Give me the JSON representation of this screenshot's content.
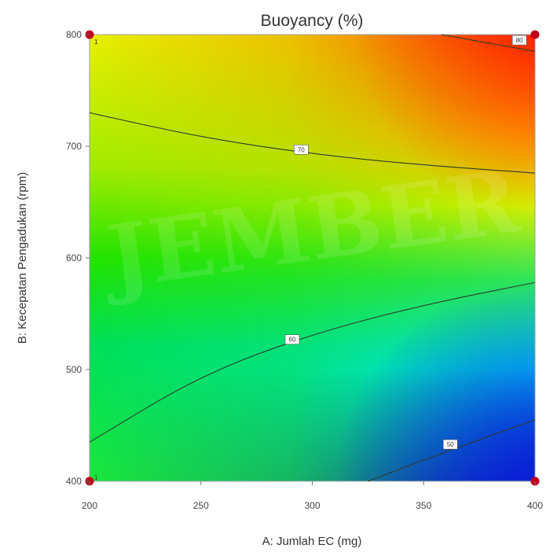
{
  "chart_data": {
    "type": "heatmap",
    "subtype": "contour",
    "title": "Buoyancy (%)",
    "xlabel": "A: Jumlah EC (mg)",
    "ylabel": "B: Kecepatan Pengadukan (rpm)",
    "xlim": [
      200,
      400
    ],
    "ylim": [
      400,
      800
    ],
    "x_ticks": [
      "200",
      "250",
      "300",
      "350",
      "400"
    ],
    "y_ticks": [
      "400",
      "500",
      "600",
      "700",
      "800"
    ],
    "colorscale": [
      "#0a1fd6",
      "#00e5ff",
      "#00e676",
      "#7ee600",
      "#e8f000",
      "#ff8c00",
      "#ff2a00"
    ],
    "corner_values": {
      "x200_y400": 56,
      "x400_y400": 44,
      "x200_y800": 76,
      "x400_y800": 84
    },
    "contours": [
      {
        "label": "50",
        "value": 50,
        "points": [
          [
            325,
            400
          ],
          [
            362,
            428
          ],
          [
            400,
            455
          ]
        ],
        "label_at": [
          362,
          433
        ]
      },
      {
        "label": "60",
        "value": 60,
        "points": [
          [
            200,
            435
          ],
          [
            250,
            495
          ],
          [
            300,
            532
          ],
          [
            350,
            558
          ],
          [
            400,
            578
          ]
        ],
        "label_at": [
          291,
          527
        ]
      },
      {
        "label": "70",
        "value": 70,
        "points": [
          [
            200,
            730
          ],
          [
            250,
            708
          ],
          [
            300,
            693
          ],
          [
            350,
            683
          ],
          [
            400,
            676
          ]
        ],
        "label_at": [
          295,
          697
        ]
      },
      {
        "label": "80",
        "value": 80,
        "points": [
          [
            358,
            800
          ],
          [
            400,
            785
          ]
        ],
        "label_at": [
          393,
          795
        ]
      }
    ],
    "design_points": [
      [
        200,
        400
      ],
      [
        400,
        400
      ],
      [
        200,
        800
      ],
      [
        400,
        800
      ]
    ],
    "design_point_labels": [
      "1",
      "",
      "1",
      ""
    ],
    "design_point_color": "#c0001a",
    "watermark": "JEMBER"
  }
}
